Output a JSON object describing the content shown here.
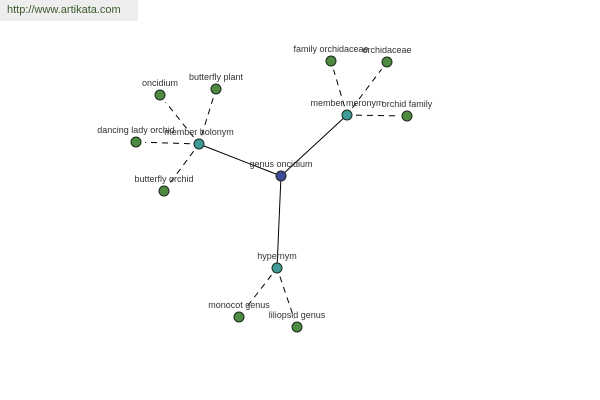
{
  "watermark": "http://www.artikata.com",
  "colors": {
    "center": "#3d4a9a",
    "relation": "#3f9a98",
    "leaf": "#4f8a43",
    "edge": "#000000"
  },
  "nodes": [
    {
      "id": "center",
      "label": "genus oncidium",
      "kind": "center"
    },
    {
      "id": "holonym",
      "label": "member holonym",
      "kind": "relation"
    },
    {
      "id": "meronym",
      "label": "member meronym",
      "kind": "relation"
    },
    {
      "id": "hypernym",
      "label": "hypernym",
      "kind": "relation"
    },
    {
      "id": "oncidium",
      "label": "oncidium",
      "kind": "leaf",
      "parent": "holonym"
    },
    {
      "id": "butterfly-plant",
      "label": "butterfly plant",
      "kind": "leaf",
      "parent": "holonym"
    },
    {
      "id": "dancing-lady",
      "label": "dancing lady orchid",
      "kind": "leaf",
      "parent": "holonym"
    },
    {
      "id": "butterfly-orchid",
      "label": "butterfly orchid",
      "kind": "leaf",
      "parent": "holonym"
    },
    {
      "id": "family-orchidaceae",
      "label": "family orchidaceae",
      "kind": "leaf",
      "parent": "meronym"
    },
    {
      "id": "orchidaceae",
      "label": "orchidaceae",
      "kind": "leaf",
      "parent": "meronym"
    },
    {
      "id": "orchid-family",
      "label": "orchid family",
      "kind": "leaf",
      "parent": "meronym"
    },
    {
      "id": "monocot-genus",
      "label": "monocot genus",
      "kind": "leaf",
      "parent": "hypernym"
    },
    {
      "id": "liliopsid-genus",
      "label": "liliopsid genus",
      "kind": "leaf",
      "parent": "hypernym"
    }
  ]
}
